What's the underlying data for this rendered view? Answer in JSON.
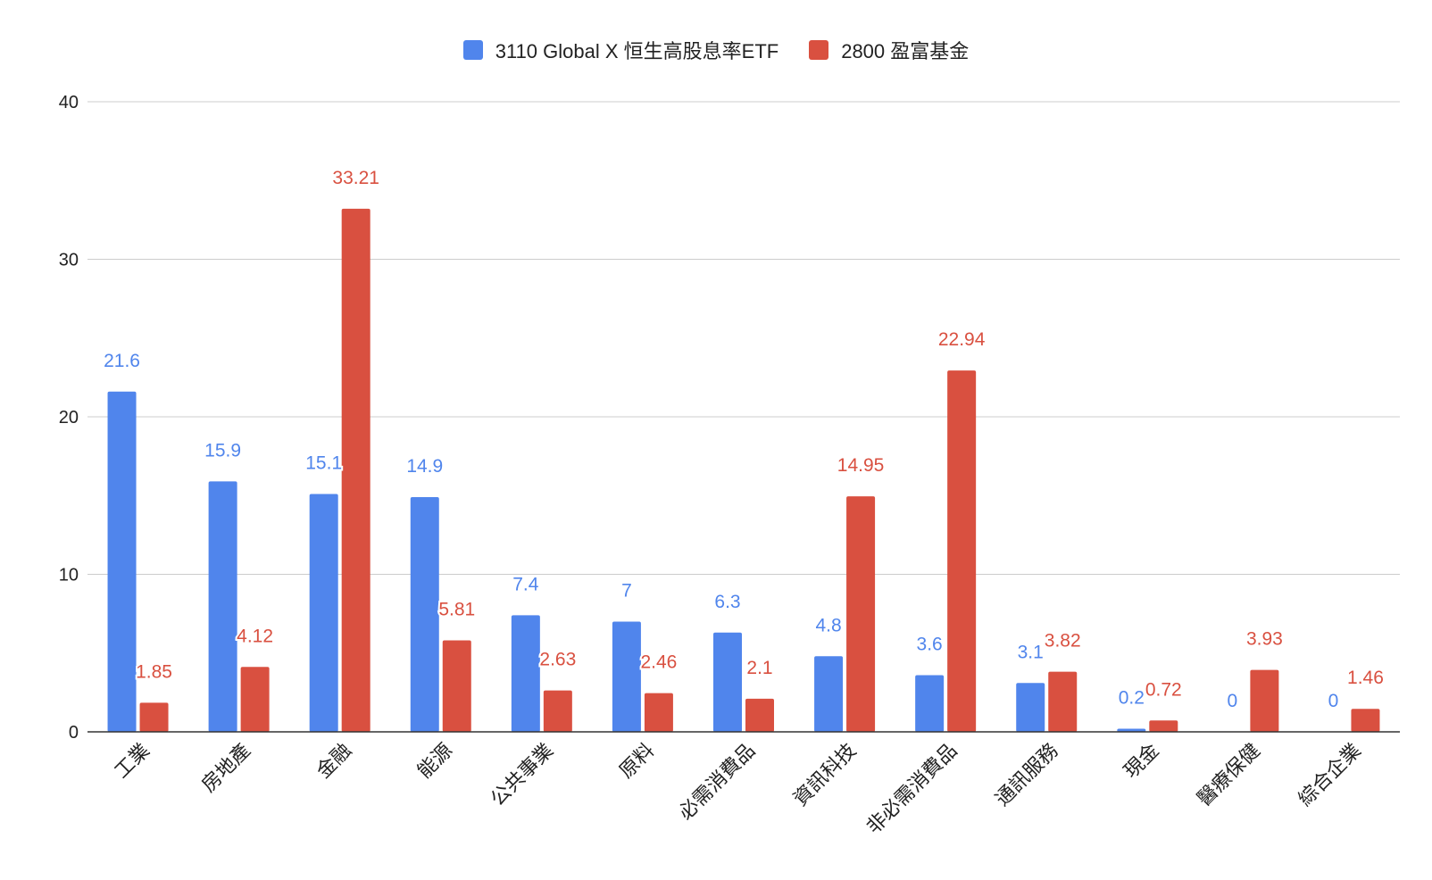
{
  "chart_data": {
    "type": "bar",
    "categories": [
      "工業",
      "房地產",
      "金融",
      "能源",
      "公共事業",
      "原料",
      "必需消費品",
      "資訊科技",
      "非必需消費品",
      "通訊服務",
      "現金",
      "醫療保健",
      "綜合企業"
    ],
    "series": [
      {
        "name": "3110 Global X 恒生高股息率ETF",
        "color": "#5085EC",
        "values": [
          21.6,
          15.9,
          15.1,
          14.9,
          7.4,
          7,
          6.3,
          4.8,
          3.6,
          3.1,
          0.2,
          0,
          0
        ],
        "labels": [
          "21.6",
          "15.9",
          "15.1",
          "14.9",
          "7.4",
          "7",
          "6.3",
          "4.8",
          "3.6",
          "3.1",
          "0.2",
          "0",
          "0"
        ]
      },
      {
        "name": "2800 盈富基金",
        "color": "#D95040",
        "values": [
          1.85,
          4.12,
          33.21,
          5.81,
          2.63,
          2.46,
          2.1,
          14.95,
          22.94,
          3.82,
          0.72,
          3.93,
          1.46
        ],
        "labels": [
          "1.85",
          "4.12",
          "33.21",
          "5.81",
          "2.63",
          "2.46",
          "2.1",
          "14.95",
          "22.94",
          "3.82",
          "0.72",
          "3.93",
          "1.46"
        ]
      }
    ],
    "ylim": [
      0,
      40
    ],
    "yticks": [
      "0",
      "10",
      "20",
      "30",
      "40"
    ],
    "grid": true,
    "legend_position": "top-center"
  }
}
